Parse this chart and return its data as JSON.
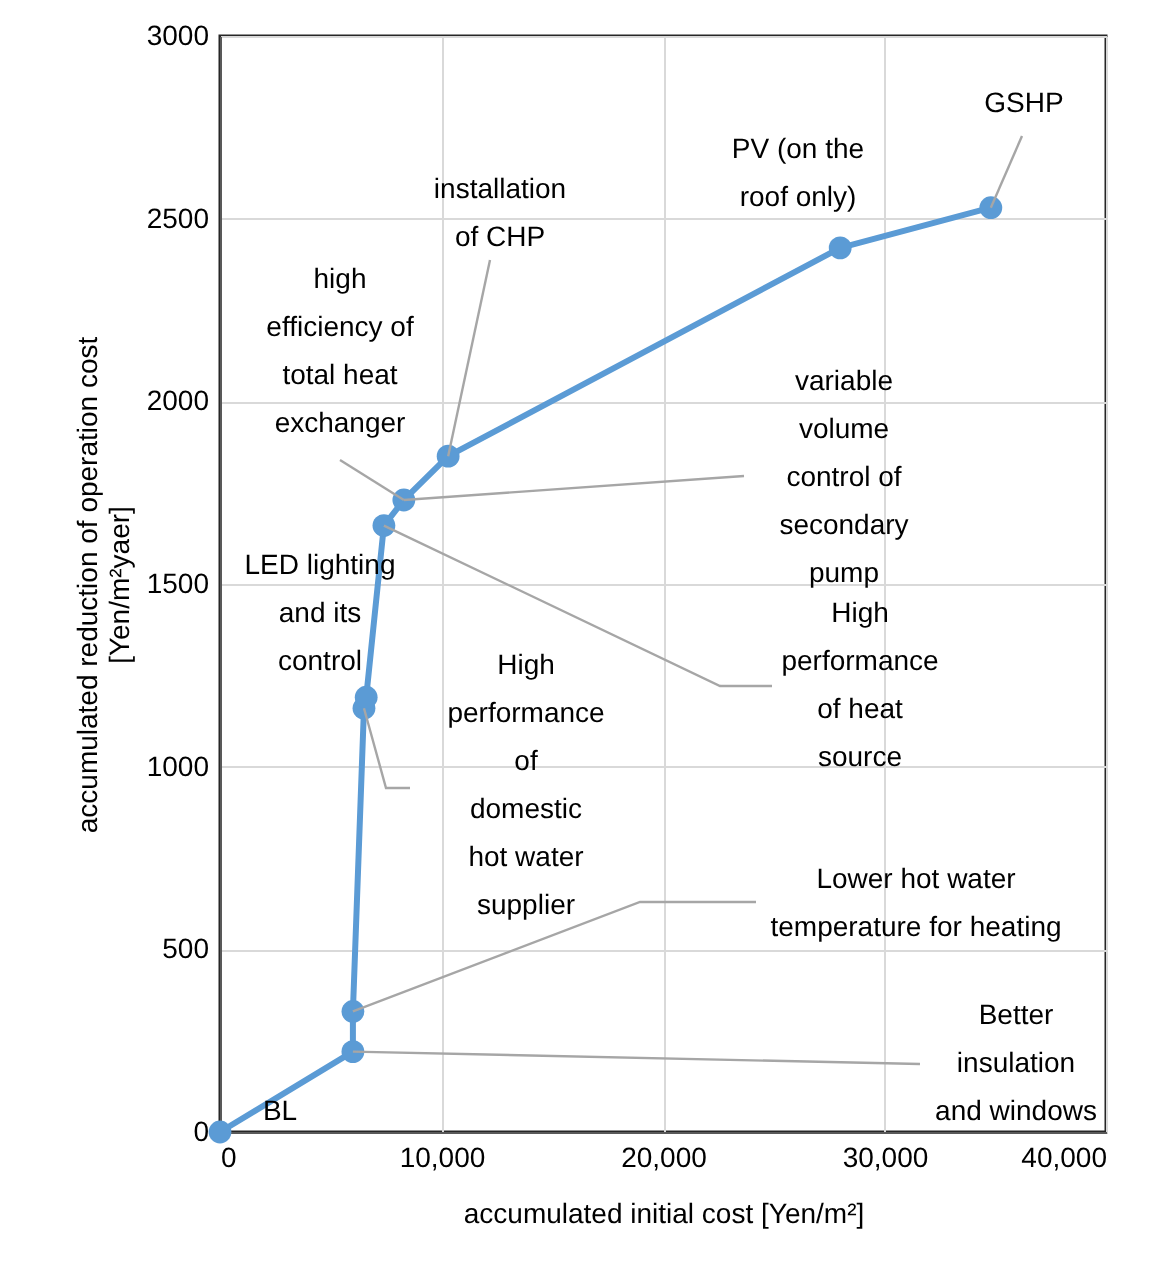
{
  "chart_data": {
    "type": "line",
    "xlabel": "accumulated initial cost [Yen/m²]",
    "ylabel": "accumulated  reduction of operation cost [Yen/m²yaer]",
    "x": [
      0,
      6000,
      6000,
      6500,
      6600,
      7400,
      8300,
      10300,
      28000,
      34800
    ],
    "series": [
      {
        "color": "#5b9bd5",
        "values": [
          0,
          220,
          330,
          1160,
          1190,
          1660,
          1730,
          1850,
          2420,
          2530
        ]
      }
    ],
    "xlim": [
      0,
      40000
    ],
    "xticks": [
      0,
      {
        "value": 10000,
        "label": "10,000"
      },
      {
        "value": 20000,
        "label": "20,000"
      },
      {
        "value": 30000,
        "label": "30,000"
      },
      {
        "value": 40000,
        "label": "40,000"
      }
    ],
    "ylim": [
      0,
      3000
    ],
    "yticks": [
      0,
      500,
      1000,
      1500,
      2000,
      2500,
      3000
    ],
    "grid": true,
    "marker": "circle",
    "line_style": "solid",
    "annotations": [
      "BL",
      {
        "text": "Better insulation and windows",
        "x": 6000,
        "y": 220
      },
      {
        "text": "Lower hot water temperature for heating",
        "x": 6000,
        "y": 330
      },
      {
        "text": "High performance of domestic hot water supplier",
        "x": 6500,
        "y": 1160
      },
      "LED lighting and its control",
      {
        "text": "High performance of heat source",
        "x": 7400,
        "y": 1660
      },
      {
        "text": "variable volume control of secondary pump",
        "x": 8300,
        "y": 1730
      },
      {
        "text": "high efficiency of total heat exchanger",
        "x": 8300,
        "y": 1730
      },
      {
        "text": "installation of CHP",
        "x": 10300,
        "y": 1850
      },
      "PV (on the roof only)",
      {
        "text": "GSHP",
        "x": 34800,
        "y": 2530
      }
    ]
  }
}
